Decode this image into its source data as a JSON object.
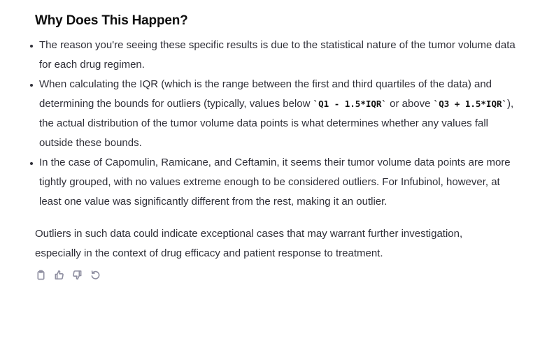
{
  "heading": "Why Does This Happen?",
  "bullets": {
    "b0": "The reason you're seeing these specific results is due to the statistical nature of the tumor volume data for each drug regimen.",
    "b1_part1": "When calculating the IQR (which is the range between the first and third quartiles of the data) and determining the bounds for outliers (typically, values below ",
    "b1_code1": "`Q1 - 1.5*IQR`",
    "b1_part2": " or above ",
    "b1_code2": "`Q3 + 1.5*IQR`",
    "b1_part3": "), the actual distribution of the tumor volume data points is what determines whether any values fall outside these bounds.",
    "b2": "In the case of Capomulin, Ramicane, and Ceftamin, it seems their tumor volume data points are more tightly grouped, with no values extreme enough to be considered outliers. For Infubinol, however, at least one value was significantly different from the rest, making it an outlier."
  },
  "summary": "Outliers in such data could indicate exceptional cases that may warrant further investigation, especially in the context of drug efficacy and patient response to treatment.",
  "actions": {
    "copy_icon": "clipboard-icon",
    "like_icon": "thumbs-up-icon",
    "dislike_icon": "thumbs-down-icon",
    "regenerate_icon": "refresh-icon"
  }
}
